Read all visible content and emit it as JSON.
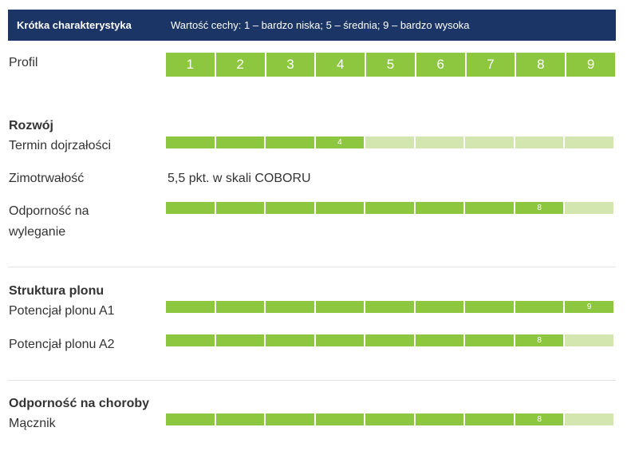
{
  "header": {
    "title": "Krótka charakterystyka",
    "description": "Wartość cechy: 1 – bardzo niska; 5 – średnia; 9 – bardzo wysoka"
  },
  "profile": {
    "label": "Profil",
    "scale": [
      "1",
      "2",
      "3",
      "4",
      "5",
      "6",
      "7",
      "8",
      "9"
    ]
  },
  "sections": {
    "rozwoj": {
      "title": "Rozwój"
    },
    "struktura": {
      "title": "Struktura plonu"
    },
    "choroby": {
      "title": "Odporność na choroby"
    }
  },
  "rows": {
    "termin": {
      "label": "Termin dojrzałości",
      "value_label": "4"
    },
    "zimotrwalosc": {
      "label": "Zimotrwałość",
      "text": "5,5 pkt. w skali COBORU"
    },
    "wyleganie": {
      "label_line1": "Odporność na",
      "label_line2": "wyleganie",
      "value_label": "8"
    },
    "a1": {
      "label": "Potencjał plonu A1",
      "value_label": "9"
    },
    "a2": {
      "label": "Potencjał plonu A2",
      "value_label": "8"
    },
    "maczniak": {
      "label": "Mącznik",
      "value_label": "8"
    }
  },
  "colors": {
    "header_bg": "#1a3566",
    "filled": "#8dc63f",
    "empty": "#d4e6b0"
  },
  "chart_data": {
    "type": "bar",
    "xlim": [
      0,
      9
    ],
    "categories": [
      "Termin dojrzałości",
      "Odporność na wyleganie",
      "Potencjał plonu A1",
      "Potencjał plonu A2",
      "Mącznik"
    ],
    "values": [
      4,
      8,
      9,
      8,
      8
    ]
  }
}
